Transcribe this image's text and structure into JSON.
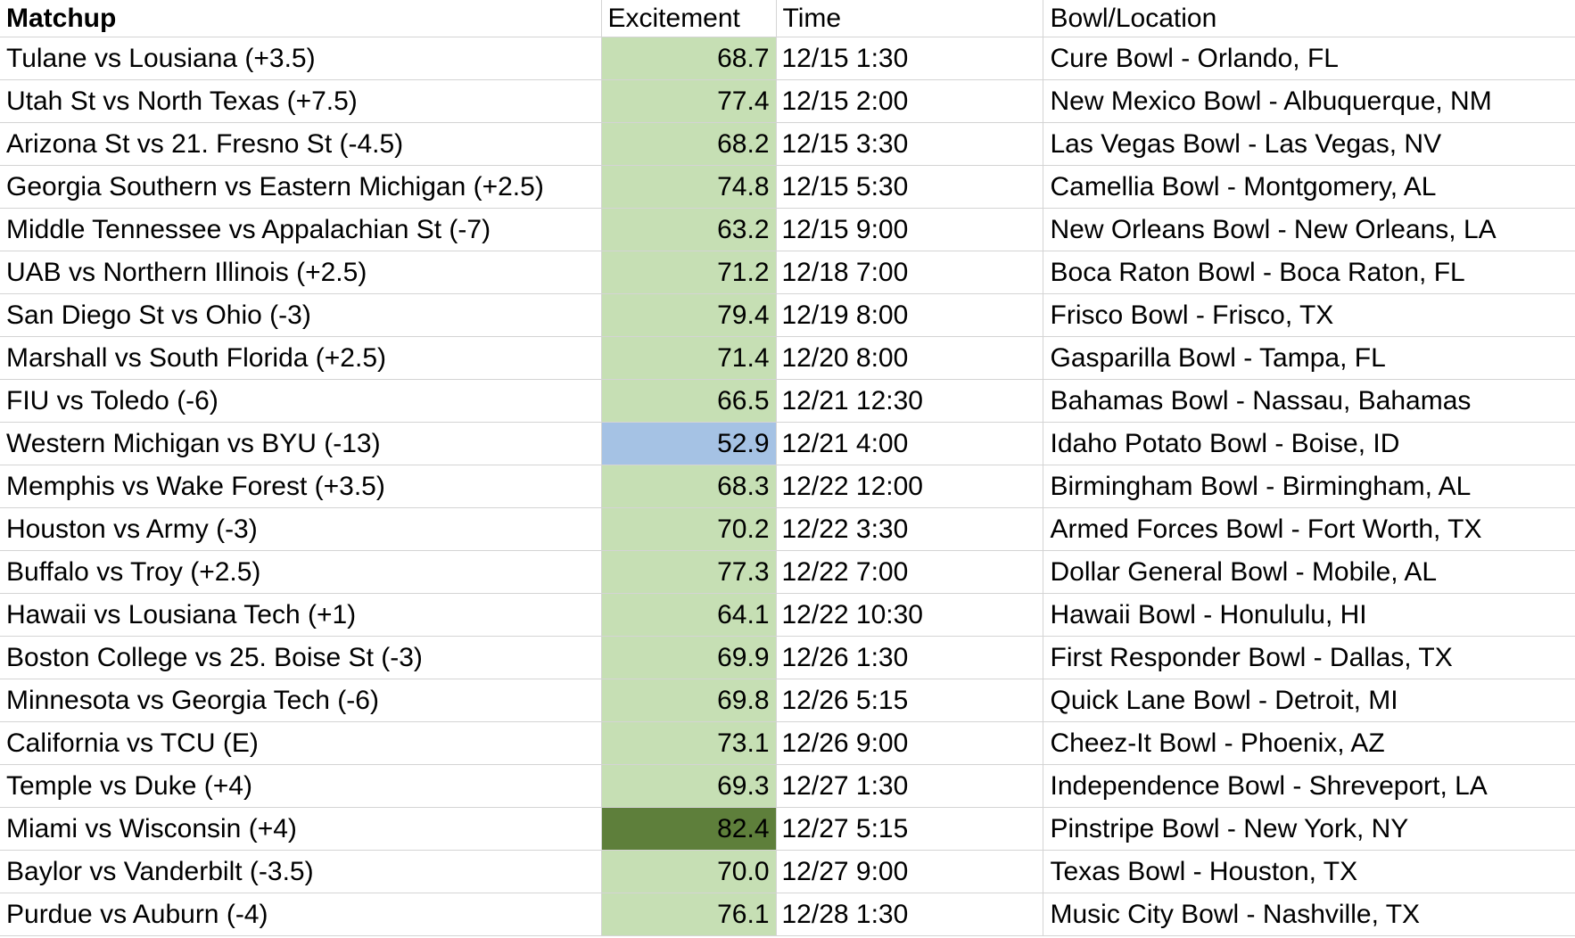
{
  "sheet": {
    "headers": {
      "matchup": "Matchup",
      "excitement": "Excitement",
      "time": "Time",
      "bowl": "Bowl/Location"
    },
    "colors": {
      "default_fill": "#c6dfb4",
      "low_fill": "#a5c2e4",
      "high_fill": "#5e7f3b",
      "gridline": "#d4d4d4"
    },
    "rows": [
      {
        "matchup": "Tulane vs Lousiana (+3.5)",
        "excitement": "68.7",
        "time": "12/15 1:30",
        "bowl": "Cure Bowl - Orlando, FL",
        "tone": "default"
      },
      {
        "matchup": "Utah St vs North Texas (+7.5)",
        "excitement": "77.4",
        "time": "12/15 2:00",
        "bowl": "New Mexico Bowl - Albuquerque, NM",
        "tone": "default"
      },
      {
        "matchup": "Arizona St vs 21. Fresno St (-4.5)",
        "excitement": "68.2",
        "time": "12/15 3:30",
        "bowl": "Las Vegas Bowl - Las Vegas, NV",
        "tone": "default"
      },
      {
        "matchup": "Georgia Southern vs Eastern Michigan (+2.5)",
        "excitement": "74.8",
        "time": "12/15 5:30",
        "bowl": "Camellia Bowl - Montgomery, AL",
        "tone": "default"
      },
      {
        "matchup": "Middle Tennessee vs Appalachian St (-7)",
        "excitement": "63.2",
        "time": "12/15 9:00",
        "bowl": "New Orleans Bowl - New Orleans, LA",
        "tone": "default"
      },
      {
        "matchup": "UAB vs Northern Illinois (+2.5)",
        "excitement": "71.2",
        "time": "12/18 7:00",
        "bowl": "Boca Raton Bowl - Boca Raton, FL",
        "tone": "default"
      },
      {
        "matchup": "San Diego St vs Ohio (-3)",
        "excitement": "79.4",
        "time": "12/19 8:00",
        "bowl": "Frisco Bowl - Frisco, TX",
        "tone": "default"
      },
      {
        "matchup": "Marshall vs South Florida (+2.5)",
        "excitement": "71.4",
        "time": "12/20 8:00",
        "bowl": "Gasparilla Bowl - Tampa, FL",
        "tone": "default"
      },
      {
        "matchup": "FIU vs Toledo (-6)",
        "excitement": "66.5",
        "time": "12/21 12:30",
        "bowl": "Bahamas Bowl - Nassau, Bahamas",
        "tone": "default"
      },
      {
        "matchup": "Western Michigan vs BYU (-13)",
        "excitement": "52.9",
        "time": "12/21 4:00",
        "bowl": "Idaho Potato Bowl - Boise, ID",
        "tone": "low"
      },
      {
        "matchup": "Memphis vs Wake Forest (+3.5)",
        "excitement": "68.3",
        "time": "12/22 12:00",
        "bowl": "Birmingham Bowl - Birmingham, AL",
        "tone": "default"
      },
      {
        "matchup": "Houston vs Army (-3)",
        "excitement": "70.2",
        "time": "12/22 3:30",
        "bowl": "Armed Forces Bowl - Fort Worth, TX",
        "tone": "default"
      },
      {
        "matchup": "Buffalo vs Troy (+2.5)",
        "excitement": "77.3",
        "time": "12/22 7:00",
        "bowl": "Dollar General Bowl - Mobile, AL",
        "tone": "default"
      },
      {
        "matchup": "Hawaii vs Lousiana Tech (+1)",
        "excitement": "64.1",
        "time": "12/22 10:30",
        "bowl": "Hawaii Bowl - Honululu, HI",
        "tone": "default"
      },
      {
        "matchup": "Boston College vs 25. Boise St (-3)",
        "excitement": "69.9",
        "time": "12/26 1:30",
        "bowl": "First Responder Bowl - Dallas, TX",
        "tone": "default"
      },
      {
        "matchup": "Minnesota vs Georgia Tech (-6)",
        "excitement": "69.8",
        "time": "12/26 5:15",
        "bowl": "Quick Lane Bowl - Detroit, MI",
        "tone": "default"
      },
      {
        "matchup": "California vs TCU (E)",
        "excitement": "73.1",
        "time": "12/26 9:00",
        "bowl": "Cheez-It Bowl - Phoenix, AZ",
        "tone": "default"
      },
      {
        "matchup": "Temple vs Duke (+4)",
        "excitement": "69.3",
        "time": "12/27 1:30",
        "bowl": "Independence Bowl - Shreveport, LA",
        "tone": "default"
      },
      {
        "matchup": "Miami vs Wisconsin (+4)",
        "excitement": "82.4",
        "time": "12/27 5:15",
        "bowl": "Pinstripe Bowl - New York, NY",
        "tone": "high"
      },
      {
        "matchup": "Baylor vs Vanderbilt (-3.5)",
        "excitement": "70.0",
        "time": "12/27 9:00",
        "bowl": "Texas Bowl - Houston, TX",
        "tone": "default"
      },
      {
        "matchup": "Purdue vs Auburn (-4)",
        "excitement": "76.1",
        "time": "12/28 1:30",
        "bowl": "Music City Bowl - Nashville, TX",
        "tone": "default"
      }
    ]
  }
}
